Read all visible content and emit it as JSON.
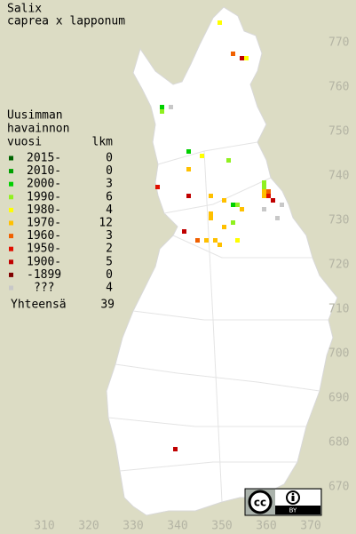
{
  "title": [
    "Salix",
    "caprea x lapponum"
  ],
  "legend": {
    "header": [
      "Uusimman",
      "havainnon",
      "vuosi"
    ],
    "count_header": "lkm",
    "periods": [
      {
        "label": "2015-",
        "count": 0,
        "color": "#006400",
        "points": []
      },
      {
        "label": "2010-",
        "count": 0,
        "color": "#00a000",
        "points": []
      },
      {
        "label": "2000-",
        "count": 3,
        "color": "#00d000",
        "points": [
          [
            342,
            745
          ],
          [
            352,
            733
          ],
          [
            336,
            755
          ]
        ]
      },
      {
        "label": "1990-",
        "count": 6,
        "color": "#90f020",
        "points": [
          [
            336,
            754
          ],
          [
            351,
            743
          ],
          [
            359,
            738
          ],
          [
            352,
            729
          ],
          [
            353,
            733
          ],
          [
            359,
            737
          ]
        ]
      },
      {
        "label": "1980-",
        "count": 4,
        "color": "#ffff00",
        "points": [
          [
            349,
            774
          ],
          [
            355,
            766
          ],
          [
            345,
            744
          ],
          [
            353,
            725
          ]
        ]
      },
      {
        "label": "1970-",
        "count": 12,
        "color": "#ffc000",
        "points": [
          [
            342,
            741
          ],
          [
            347,
            731
          ],
          [
            347,
            730
          ],
          [
            350,
            734
          ],
          [
            354,
            732
          ],
          [
            348,
            725
          ],
          [
            349,
            724
          ],
          [
            359,
            736
          ],
          [
            359,
            735
          ],
          [
            350,
            728
          ],
          [
            347,
            735
          ],
          [
            346,
            725
          ]
        ]
      },
      {
        "label": "1960-",
        "count": 3,
        "color": "#f06000",
        "points": [
          [
            352,
            767
          ],
          [
            344,
            725
          ],
          [
            360,
            736
          ]
        ]
      },
      {
        "label": "1950-",
        "count": 2,
        "color": "#e01000",
        "points": [
          [
            360,
            735
          ],
          [
            335,
            737
          ]
        ]
      },
      {
        "label": "1900-",
        "count": 5,
        "color": "#c00000",
        "points": [
          [
            354,
            766
          ],
          [
            342,
            735
          ],
          [
            341,
            727
          ],
          [
            361,
            734
          ],
          [
            339,
            678
          ]
        ]
      },
      {
        "label": "-1899",
        "count": 0,
        "color": "#800000",
        "points": []
      },
      {
        "label": "???",
        "count": 4,
        "color": "#c8c8c8",
        "points": [
          [
            338,
            755
          ],
          [
            359,
            732
          ],
          [
            362,
            730
          ],
          [
            363,
            733
          ]
        ]
      }
    ],
    "total_label": "Yhteensä",
    "total": 39
  },
  "axes": {
    "xticks": [
      310,
      320,
      330,
      340,
      350,
      360,
      370
    ],
    "yticks": [
      770,
      760,
      750,
      740,
      730,
      720,
      710,
      700,
      690,
      680,
      670
    ]
  },
  "badge": {
    "cc": "cc",
    "by": "BY"
  }
}
